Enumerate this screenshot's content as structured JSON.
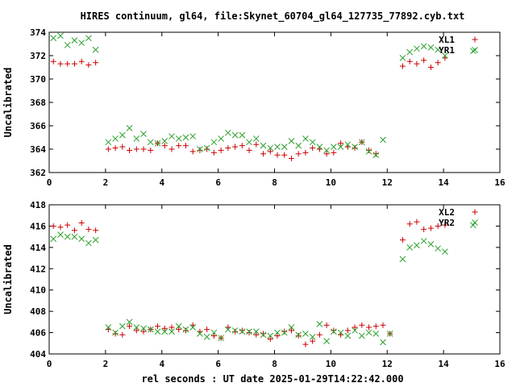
{
  "title": "HIRES continuum, gl64, file:Skynet_60704_gl64_127735_77892.cyb.txt",
  "xlabel": "rel seconds : UT date 2025-01-29T14:22:42.000",
  "colors": {
    "red": "#cc0000",
    "green": "#2ca02c",
    "axis": "#000000"
  },
  "chart_data": [
    {
      "type": "scatter",
      "title": "HIRES continuum, gl64, file:Skynet_60704_gl64_127735_77892.cyb.txt",
      "ylabel": "Uncalibrated",
      "xlim": [
        0,
        16
      ],
      "ylim": [
        362,
        374
      ],
      "xticks": [
        0,
        2,
        4,
        6,
        8,
        10,
        12,
        14,
        16
      ],
      "yticks": [
        362,
        364,
        366,
        368,
        370,
        372,
        374
      ],
      "grid": false,
      "legend": "top-right",
      "series": [
        {
          "name": "XL1",
          "marker": "plus",
          "color": "#cc0000",
          "points": [
            [
              0.15,
              371.5
            ],
            [
              0.4,
              371.3
            ],
            [
              0.65,
              371.3
            ],
            [
              0.9,
              371.3
            ],
            [
              1.15,
              371.5
            ],
            [
              1.4,
              371.2
            ],
            [
              1.65,
              371.4
            ],
            [
              2.1,
              364.0
            ],
            [
              2.35,
              364.1
            ],
            [
              2.6,
              364.2
            ],
            [
              2.85,
              363.9
            ],
            [
              3.1,
              364.0
            ],
            [
              3.35,
              364.0
            ],
            [
              3.6,
              363.9
            ],
            [
              3.85,
              364.5
            ],
            [
              4.1,
              364.3
            ],
            [
              4.35,
              364.0
            ],
            [
              4.6,
              364.3
            ],
            [
              4.85,
              364.3
            ],
            [
              5.1,
              363.8
            ],
            [
              5.35,
              363.9
            ],
            [
              5.6,
              364.0
            ],
            [
              5.85,
              363.7
            ],
            [
              6.1,
              363.9
            ],
            [
              6.35,
              364.1
            ],
            [
              6.6,
              364.2
            ],
            [
              6.85,
              364.3
            ],
            [
              7.1,
              363.9
            ],
            [
              7.35,
              364.4
            ],
            [
              7.6,
              363.6
            ],
            [
              7.85,
              363.8
            ],
            [
              8.1,
              363.5
            ],
            [
              8.35,
              363.5
            ],
            [
              8.6,
              363.2
            ],
            [
              8.85,
              363.6
            ],
            [
              9.1,
              363.7
            ],
            [
              9.35,
              364.1
            ],
            [
              9.6,
              364.0
            ],
            [
              9.85,
              363.6
            ],
            [
              10.1,
              363.7
            ],
            [
              10.35,
              364.5
            ],
            [
              10.6,
              364.2
            ],
            [
              10.85,
              364.1
            ],
            [
              11.1,
              364.6
            ],
            [
              11.35,
              363.9
            ],
            [
              11.6,
              363.6
            ],
            [
              12.55,
              371.1
            ],
            [
              12.8,
              371.5
            ],
            [
              13.05,
              371.3
            ],
            [
              13.3,
              371.6
            ],
            [
              13.55,
              371.0
            ],
            [
              13.8,
              371.4
            ],
            [
              14.05,
              371.8
            ]
          ]
        },
        {
          "name": "YR1",
          "marker": "x",
          "color": "#2ca02c",
          "points": [
            [
              0.15,
              373.5
            ],
            [
              0.4,
              373.7
            ],
            [
              0.65,
              372.9
            ],
            [
              0.9,
              373.3
            ],
            [
              1.15,
              373.1
            ],
            [
              1.4,
              373.5
            ],
            [
              1.65,
              372.5
            ],
            [
              2.1,
              364.6
            ],
            [
              2.35,
              364.9
            ],
            [
              2.6,
              365.2
            ],
            [
              2.85,
              365.8
            ],
            [
              3.1,
              364.9
            ],
            [
              3.35,
              365.3
            ],
            [
              3.6,
              364.6
            ],
            [
              3.85,
              364.5
            ],
            [
              4.1,
              364.7
            ],
            [
              4.35,
              365.1
            ],
            [
              4.6,
              364.9
            ],
            [
              4.85,
              365.0
            ],
            [
              5.1,
              365.1
            ],
            [
              5.35,
              364.0
            ],
            [
              5.6,
              364.1
            ],
            [
              5.85,
              364.6
            ],
            [
              6.1,
              364.9
            ],
            [
              6.35,
              365.4
            ],
            [
              6.6,
              365.2
            ],
            [
              6.85,
              365.2
            ],
            [
              7.1,
              364.6
            ],
            [
              7.35,
              364.9
            ],
            [
              7.6,
              364.3
            ],
            [
              7.85,
              364.1
            ],
            [
              8.1,
              364.2
            ],
            [
              8.35,
              364.2
            ],
            [
              8.6,
              364.7
            ],
            [
              8.85,
              364.3
            ],
            [
              9.1,
              364.9
            ],
            [
              9.35,
              364.6
            ],
            [
              9.6,
              364.2
            ],
            [
              9.85,
              363.9
            ],
            [
              10.1,
              364.2
            ],
            [
              10.35,
              364.2
            ],
            [
              10.6,
              364.4
            ],
            [
              10.85,
              364.2
            ],
            [
              11.1,
              364.6
            ],
            [
              11.35,
              363.8
            ],
            [
              11.6,
              363.5
            ],
            [
              11.85,
              364.8
            ],
            [
              12.55,
              371.8
            ],
            [
              12.8,
              372.3
            ],
            [
              13.05,
              372.6
            ],
            [
              13.3,
              372.8
            ],
            [
              13.55,
              372.7
            ],
            [
              13.8,
              372.5
            ],
            [
              14.05,
              372.0
            ],
            [
              15.05,
              372.4
            ]
          ]
        }
      ]
    },
    {
      "type": "scatter",
      "ylabel": "Uncalibrated",
      "xlabel": "rel seconds : UT date 2025-01-29T14:22:42.000",
      "xlim": [
        0,
        16
      ],
      "ylim": [
        404,
        418
      ],
      "xticks": [
        0,
        2,
        4,
        6,
        8,
        10,
        12,
        14,
        16
      ],
      "yticks": [
        404,
        406,
        408,
        410,
        412,
        414,
        416,
        418
      ],
      "grid": false,
      "legend": "top-right",
      "series": [
        {
          "name": "XL2",
          "marker": "plus",
          "color": "#cc0000",
          "points": [
            [
              0.15,
              416.0
            ],
            [
              0.4,
              415.9
            ],
            [
              0.65,
              416.1
            ],
            [
              0.9,
              415.6
            ],
            [
              1.15,
              416.3
            ],
            [
              1.4,
              415.7
            ],
            [
              1.65,
              415.6
            ],
            [
              2.1,
              406.3
            ],
            [
              2.35,
              405.9
            ],
            [
              2.6,
              405.8
            ],
            [
              2.85,
              406.6
            ],
            [
              3.1,
              406.2
            ],
            [
              3.35,
              406.1
            ],
            [
              3.6,
              406.3
            ],
            [
              3.85,
              406.6
            ],
            [
              4.1,
              406.4
            ],
            [
              4.35,
              406.5
            ],
            [
              4.6,
              406.3
            ],
            [
              4.85,
              406.2
            ],
            [
              5.1,
              406.7
            ],
            [
              5.35,
              406.1
            ],
            [
              5.6,
              406.3
            ],
            [
              5.85,
              405.7
            ],
            [
              6.1,
              405.5
            ],
            [
              6.35,
              406.5
            ],
            [
              6.6,
              406.1
            ],
            [
              6.85,
              406.2
            ],
            [
              7.1,
              406.0
            ],
            [
              7.35,
              405.8
            ],
            [
              7.6,
              405.9
            ],
            [
              7.85,
              405.4
            ],
            [
              8.1,
              405.7
            ],
            [
              8.35,
              406.1
            ],
            [
              8.6,
              406.2
            ],
            [
              8.85,
              405.7
            ],
            [
              9.1,
              404.9
            ],
            [
              9.35,
              405.2
            ],
            [
              9.6,
              405.8
            ],
            [
              9.85,
              406.7
            ],
            [
              10.1,
              406.2
            ],
            [
              10.35,
              405.8
            ],
            [
              10.6,
              406.2
            ],
            [
              10.85,
              406.5
            ],
            [
              11.1,
              406.7
            ],
            [
              11.35,
              406.5
            ],
            [
              11.6,
              406.6
            ],
            [
              11.85,
              406.7
            ],
            [
              12.1,
              405.9
            ],
            [
              12.55,
              414.7
            ],
            [
              12.8,
              416.2
            ],
            [
              13.05,
              416.4
            ],
            [
              13.3,
              415.7
            ],
            [
              13.55,
              415.8
            ],
            [
              13.8,
              416.0
            ],
            [
              14.05,
              416.1
            ]
          ]
        },
        {
          "name": "YR2",
          "marker": "x",
          "color": "#2ca02c",
          "points": [
            [
              0.15,
              414.8
            ],
            [
              0.4,
              415.2
            ],
            [
              0.65,
              415.0
            ],
            [
              0.9,
              415.0
            ],
            [
              1.15,
              414.8
            ],
            [
              1.4,
              414.4
            ],
            [
              1.65,
              414.7
            ],
            [
              2.1,
              406.5
            ],
            [
              2.35,
              406.0
            ],
            [
              2.6,
              406.6
            ],
            [
              2.85,
              407.0
            ],
            [
              3.1,
              406.5
            ],
            [
              3.35,
              406.4
            ],
            [
              3.6,
              406.3
            ],
            [
              3.85,
              406.1
            ],
            [
              4.1,
              406.1
            ],
            [
              4.35,
              406.1
            ],
            [
              4.6,
              406.6
            ],
            [
              4.85,
              406.3
            ],
            [
              5.1,
              406.5
            ],
            [
              5.35,
              405.9
            ],
            [
              5.6,
              405.6
            ],
            [
              5.85,
              406.0
            ],
            [
              6.1,
              405.5
            ],
            [
              6.35,
              406.3
            ],
            [
              6.6,
              406.2
            ],
            [
              6.85,
              406.1
            ],
            [
              7.1,
              406.1
            ],
            [
              7.35,
              406.1
            ],
            [
              7.6,
              405.8
            ],
            [
              7.85,
              405.7
            ],
            [
              8.1,
              406.0
            ],
            [
              8.35,
              406.0
            ],
            [
              8.6,
              406.5
            ],
            [
              8.85,
              405.8
            ],
            [
              9.1,
              405.9
            ],
            [
              9.35,
              405.6
            ],
            [
              9.6,
              406.8
            ],
            [
              9.85,
              405.2
            ],
            [
              10.1,
              406.1
            ],
            [
              10.35,
              406.0
            ],
            [
              10.6,
              405.7
            ],
            [
              10.85,
              406.2
            ],
            [
              11.1,
              405.7
            ],
            [
              11.35,
              406.0
            ],
            [
              11.6,
              405.9
            ],
            [
              11.85,
              405.1
            ],
            [
              12.1,
              405.9
            ],
            [
              12.55,
              412.9
            ],
            [
              12.8,
              414.0
            ],
            [
              13.05,
              414.2
            ],
            [
              13.3,
              414.6
            ],
            [
              13.55,
              414.3
            ],
            [
              13.8,
              413.9
            ],
            [
              14.05,
              413.6
            ],
            [
              15.05,
              416.1
            ]
          ]
        }
      ]
    }
  ]
}
